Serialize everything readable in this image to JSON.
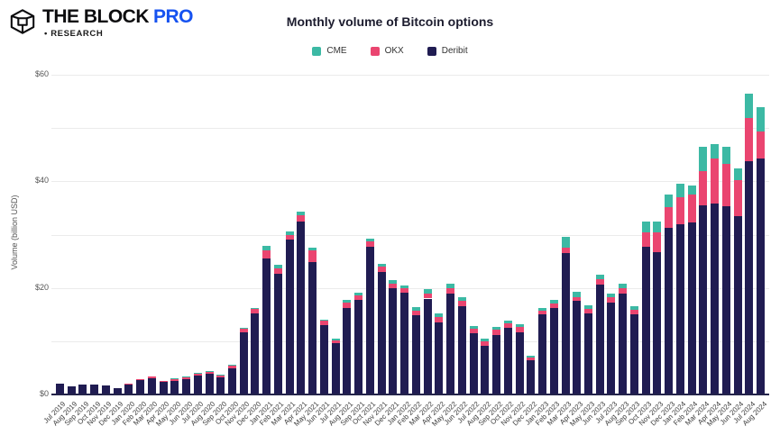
{
  "header": {
    "brand": "THE BLOCK",
    "brand_pro": "PRO",
    "research_bullet": "•",
    "research_label": "RESEARCH",
    "brand_blue": "#1652f0"
  },
  "chart_data": {
    "type": "bar",
    "stacked": true,
    "title": "Monthly volume of Bitcoin options",
    "xlabel": "",
    "ylabel": "Volume (billion USD)",
    "ylim": [
      0,
      60
    ],
    "y_tick_labels": [
      "$0",
      "$20",
      "$40",
      "$60"
    ],
    "y_tick_values": [
      0,
      20,
      40,
      60
    ],
    "gridline_values": [
      10,
      20,
      30,
      40,
      50,
      60
    ],
    "legend_position": "top",
    "grid": true,
    "categories": [
      "Jul 2019",
      "Aug 2019",
      "Sep 2019",
      "Oct 2019",
      "Nov 2019",
      "Dec 2019",
      "Jan 2020",
      "Feb 2020",
      "Mar 2020",
      "Apr 2020",
      "May 2020",
      "Jun 2020",
      "Jul 2020",
      "Aug 2020",
      "Sep 2020",
      "Oct 2020",
      "Nov 2020",
      "Dec 2020",
      "Jan 2021",
      "Feb 2021",
      "Mar 2021",
      "Apr 2021",
      "May 2021",
      "Jun 2021",
      "Jul 2021",
      "Aug 2021",
      "Sep 2021",
      "Oct 2021",
      "Nov 2021",
      "Dec 2021",
      "Jan 2022",
      "Feb 2022",
      "Mar 2022",
      "Apr 2022",
      "May 2022",
      "Jun 2022",
      "Jul 2022",
      "Aug 2022",
      "Sep 2022",
      "Oct 2022",
      "Nov 2022",
      "Dec 2022",
      "Jan 2023",
      "Feb 2023",
      "Mar 2023",
      "Apr 2023",
      "May 2023",
      "Jun 2023",
      "Jul 2023",
      "Aug 2023",
      "Sep 2023",
      "Oct 2023",
      "Nov 2023",
      "Dec 2023",
      "Jan 2024",
      "Feb 2024",
      "Mar 2024",
      "Apr 2024",
      "May 2024",
      "Jun 2024",
      "Jul 2024",
      "Aug 2024"
    ],
    "series": [
      {
        "name": "CME",
        "color": "#3cb9a4",
        "values": [
          0,
          0,
          0,
          0,
          0,
          0,
          0,
          0,
          0,
          0,
          0.1,
          0.1,
          0.1,
          0.1,
          0.1,
          0.1,
          0.2,
          0.3,
          0.8,
          0.7,
          0.7,
          0.7,
          0.4,
          0.3,
          0.2,
          0.4,
          0.5,
          0.6,
          0.5,
          0.6,
          0.5,
          0.6,
          0.8,
          0.7,
          0.9,
          0.8,
          0.5,
          0.5,
          0.6,
          0.5,
          0.5,
          0.3,
          0.5,
          0.6,
          2.0,
          1.0,
          0.7,
          0.9,
          0.8,
          0.9,
          0.7,
          2.0,
          2.0,
          2.3,
          2.5,
          1.7,
          4.5,
          2.8,
          3.2,
          2.3,
          4.6,
          4.6
        ]
      },
      {
        "name": "OKX",
        "color": "#ea4570",
        "values": [
          0,
          0,
          0,
          0,
          0,
          0,
          0.1,
          0.2,
          0.3,
          0.2,
          0.3,
          0.3,
          0.3,
          0.4,
          0.4,
          0.5,
          0.7,
          0.8,
          1.5,
          0.9,
          0.9,
          1.2,
          2.2,
          0.8,
          0.5,
          1.0,
          0.9,
          0.9,
          1.0,
          0.8,
          0.9,
          0.9,
          0.9,
          0.9,
          1.0,
          1.0,
          0.9,
          0.8,
          0.9,
          0.8,
          1.0,
          0.5,
          0.6,
          0.8,
          1.1,
          0.8,
          0.9,
          0.9,
          0.9,
          1.0,
          0.8,
          2.8,
          3.7,
          4.0,
          5.0,
          5.3,
          6.5,
          8.4,
          7.9,
          6.8,
          8.1,
          5.1
        ]
      },
      {
        "name": "Deribit",
        "color": "#201c52",
        "values": [
          2.1,
          1.5,
          1.8,
          1.9,
          1.7,
          1.2,
          2.0,
          2.7,
          3.0,
          2.3,
          2.6,
          2.9,
          3.6,
          3.9,
          3.2,
          4.9,
          11.6,
          15.2,
          25.6,
          22.7,
          29.0,
          32.4,
          24.9,
          13.0,
          9.7,
          16.3,
          17.7,
          27.8,
          23.0,
          20.0,
          19.1,
          14.9,
          18.0,
          13.6,
          18.9,
          16.5,
          11.5,
          9.1,
          11.2,
          12.5,
          11.7,
          6.5,
          15.1,
          16.3,
          26.5,
          17.5,
          15.2,
          20.7,
          17.3,
          18.9,
          15.1,
          27.7,
          26.7,
          31.2,
          32.0,
          32.2,
          35.5,
          35.8,
          35.4,
          33.4,
          43.8,
          44.3
        ]
      }
    ]
  }
}
